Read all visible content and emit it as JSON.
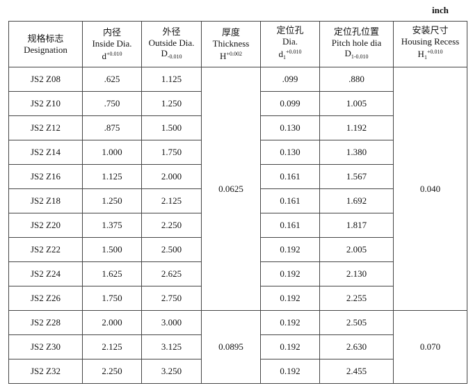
{
  "unit": "inch",
  "headers": [
    {
      "cn": "规格标志",
      "en": "Designation",
      "sym": "",
      "sup": "",
      "sub": ""
    },
    {
      "cn": "内径",
      "en": "Inside Dia.",
      "sym": "d",
      "sup": "+0.010",
      "sub": ""
    },
    {
      "cn": "外径",
      "en": "Outside Dia.",
      "sym": "D",
      "sup": "",
      "sub": "-0.010"
    },
    {
      "cn": "厚度",
      "en": "Thickness",
      "sym": "H",
      "sup": "+0.002",
      "sub": ""
    },
    {
      "cn": "定位孔",
      "en": "Dia.",
      "sym": "d",
      "sup": "+0.010",
      "sub": "1"
    },
    {
      "cn": "定位孔位置",
      "en": "Pitch hole dia",
      "sym": "D",
      "sup": "",
      "sub": "1-0.010"
    },
    {
      "cn": "安装尺寸",
      "en": "Housing Recess",
      "sym": "H",
      "sup": "+0.010",
      "sub": "1"
    }
  ],
  "rows": [
    {
      "designation": "JS2 Z08",
      "inside": ".625",
      "outside": "1.125",
      "hole": ".099",
      "pitch": ".880"
    },
    {
      "designation": "JS2 Z10",
      "inside": ".750",
      "outside": "1.250",
      "hole": "0.099",
      "pitch": "1.005"
    },
    {
      "designation": "JS2 Z12",
      "inside": ".875",
      "outside": "1.500",
      "hole": "0.130",
      "pitch": "1.192"
    },
    {
      "designation": "JS2 Z14",
      "inside": "1.000",
      "outside": "1.750",
      "hole": "0.130",
      "pitch": "1.380"
    },
    {
      "designation": "JS2 Z16",
      "inside": "1.125",
      "outside": "2.000",
      "hole": "0.161",
      "pitch": "1.567"
    },
    {
      "designation": "JS2 Z18",
      "inside": "1.250",
      "outside": "2.125",
      "hole": "0.161",
      "pitch": "1.692"
    },
    {
      "designation": "JS2 Z20",
      "inside": "1.375",
      "outside": "2.250",
      "hole": "0.161",
      "pitch": "1.817"
    },
    {
      "designation": "JS2 Z22",
      "inside": "1.500",
      "outside": "2.500",
      "hole": "0.192",
      "pitch": "2.005"
    },
    {
      "designation": "JS2 Z24",
      "inside": "1.625",
      "outside": "2.625",
      "hole": "0.192",
      "pitch": "2.130"
    },
    {
      "designation": "JS2 Z26",
      "inside": "1.750",
      "outside": "2.750",
      "hole": "0.192",
      "pitch": "2.255"
    },
    {
      "designation": "JS2 Z28",
      "inside": "2.000",
      "outside": "3.000",
      "hole": "0.192",
      "pitch": "2.505"
    },
    {
      "designation": "JS2 Z30",
      "inside": "2.125",
      "outside": "3.125",
      "hole": "0.192",
      "pitch": "2.630"
    },
    {
      "designation": "JS2 Z32",
      "inside": "2.250",
      "outside": "3.250",
      "hole": "0.192",
      "pitch": "2.455"
    }
  ],
  "groups": [
    {
      "rows": 10,
      "thickness": "0.0625",
      "recess": "0.040"
    },
    {
      "rows": 3,
      "thickness": "0.0895",
      "recess": "0.070"
    }
  ]
}
